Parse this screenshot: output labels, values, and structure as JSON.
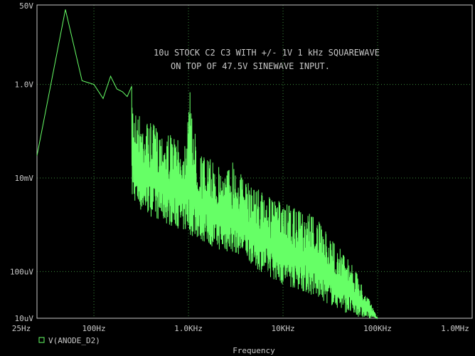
{
  "chart_data": {
    "type": "line",
    "xscale": "log",
    "yscale": "log",
    "xlabel": "Frequency",
    "ylabel": "",
    "xlim": [
      25,
      1000000
    ],
    "ylim": [
      1e-05,
      50
    ],
    "x_ticks": [
      {
        "value": 25,
        "label": "25Hz"
      },
      {
        "value": 100,
        "label": "100Hz"
      },
      {
        "value": 1000,
        "label": "1.0KHz"
      },
      {
        "value": 10000,
        "label": "10KHz"
      },
      {
        "value": 100000,
        "label": "100KHz"
      },
      {
        "value": 1000000,
        "label": "1.0MHz"
      }
    ],
    "y_ticks": [
      {
        "value": 50,
        "label": "50V"
      },
      {
        "value": 1,
        "label": "1.0V"
      },
      {
        "value": 0.01,
        "label": "10mV"
      },
      {
        "value": 0.0001,
        "label": "100uV"
      },
      {
        "value": 1e-05,
        "label": "10uV"
      }
    ],
    "annotation": [
      "10u STOCK C2 C3 WITH +/- 1V 1 kHz SQUAREWAVE",
      "ON TOP OF 47.5V SINEWAVE INPUT."
    ],
    "grid": true,
    "colors": {
      "trace": "#66ff66",
      "grid": "#3c8c3c",
      "frame": "#c8c8c8",
      "background": "#000000"
    },
    "series": [
      {
        "name": "V(ANODE_D2)",
        "x": [
          25,
          50,
          75,
          100,
          125,
          150,
          175,
          200,
          225,
          250,
          275,
          300,
          400,
          500,
          600,
          700,
          800,
          900,
          1000,
          1250,
          1500,
          2000,
          2500,
          3000,
          4000,
          5000,
          7000,
          10000,
          15000,
          20000,
          30000,
          50000,
          70000,
          100000
        ],
        "peaks": [
          0.03,
          40,
          1.2,
          1.0,
          0.5,
          1.5,
          0.8,
          0.7,
          0.55,
          0.9,
          0.3,
          0.25,
          0.15,
          0.12,
          0.1,
          0.08,
          0.06,
          0.05,
          1.2,
          0.04,
          0.03,
          0.02,
          0.015,
          0.03,
          0.008,
          0.008,
          0.004,
          0.003,
          0.002,
          0.002,
          0.0006,
          0.0002,
          5e-05,
          1e-05
        ],
        "floor": [
          0.03,
          0.01,
          0.01,
          0.03,
          0.02,
          0.015,
          0.01,
          0.005,
          0.004,
          0.003,
          0.003,
          0.002,
          0.0015,
          0.0012,
          0.001,
          0.0009,
          0.0008,
          0.0007,
          0.0006,
          0.0005,
          0.0004,
          0.0003,
          0.00025,
          0.00025,
          0.0002,
          0.00012,
          8e-05,
          5e-05,
          4e-05,
          3e-05,
          2e-05,
          1.2e-05,
          1e-05,
          1e-05
        ]
      }
    ]
  }
}
